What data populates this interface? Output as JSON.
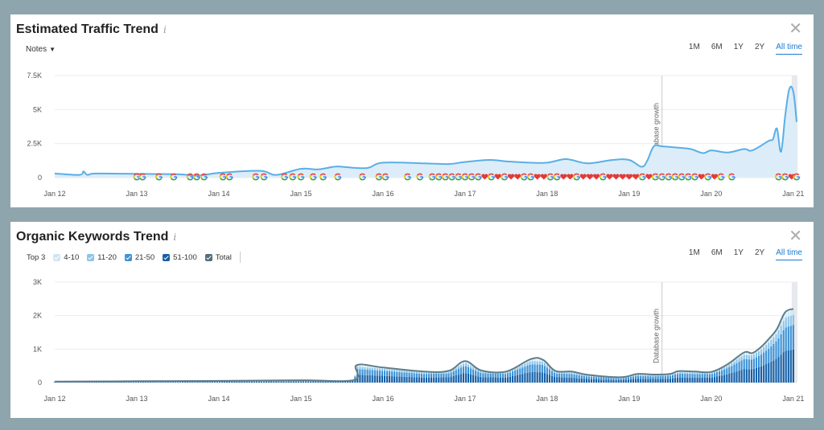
{
  "traffic_panel": {
    "title": "Estimated Traffic Trend",
    "info_glyph": "i",
    "notes_label": "Notes",
    "close_glyph": "✕",
    "range_tabs": [
      "1M",
      "6M",
      "1Y",
      "2Y",
      "All time"
    ],
    "active_tab": "All time",
    "marker_label": "Database growth"
  },
  "keywords_panel": {
    "title": "Organic Keywords Trend",
    "info_glyph": "i",
    "close_glyph": "✕",
    "range_tabs": [
      "1M",
      "6M",
      "1Y",
      "2Y",
      "All time"
    ],
    "active_tab": "All time",
    "marker_label": "Database growth",
    "legend": [
      {
        "label": "Top 3",
        "color": "#0b4f8a",
        "checked": false
      },
      {
        "label": "4-10",
        "color": "#cfe6f6",
        "checked": true
      },
      {
        "label": "11-20",
        "color": "#8cc4ea",
        "checked": true
      },
      {
        "label": "21-50",
        "color": "#3d92d6",
        "checked": true
      },
      {
        "label": "51-100",
        "color": "#1560a8",
        "checked": true
      },
      {
        "label": "Total",
        "color": "#546e7a",
        "checked": true
      }
    ]
  },
  "colors": {
    "traffic_line": "#5aaee6",
    "traffic_area": "#dcedf9",
    "grid": "#ececec",
    "marker_line": "#c9c9c9",
    "google_blue": "#4285f4",
    "google_red": "#ea4335",
    "google_yellow": "#fbbc05",
    "google_green": "#34a853",
    "heart_red": "#e53935",
    "total_line": "#5f7d88",
    "accent": "#1b7bd1"
  },
  "chart_data": [
    {
      "type": "area",
      "title": "Estimated Traffic Trend",
      "x_ticks": [
        "Jan 12",
        "Jan 13",
        "Jan 14",
        "Jan 15",
        "Jan 16",
        "Jan 17",
        "Jan 18",
        "Jan 19",
        "Jan 20",
        "Jan 21"
      ],
      "y_ticks": [
        "0",
        "2.5K",
        "5K",
        "7.5K"
      ],
      "ylim": [
        0,
        7500
      ],
      "xlim": [
        2012.0,
        2021.05
      ],
      "x": [
        2012.0,
        2012.3,
        2012.35,
        2012.4,
        2012.5,
        2013.0,
        2013.5,
        2013.75,
        2014.0,
        2014.5,
        2014.7,
        2015.0,
        2015.2,
        2015.4,
        2015.5,
        2015.8,
        2016.0,
        2016.5,
        2016.8,
        2017.0,
        2017.3,
        2017.5,
        2017.8,
        2018.0,
        2018.2,
        2018.3,
        2018.5,
        2018.8,
        2019.0,
        2019.15,
        2019.22,
        2019.3,
        2019.4,
        2019.6,
        2019.75,
        2019.9,
        2020.0,
        2020.2,
        2020.4,
        2020.5,
        2020.7,
        2020.75,
        2020.8,
        2020.85,
        2020.9,
        2020.95,
        2021.0,
        2021.04
      ],
      "y": [
        300,
        200,
        450,
        200,
        300,
        280,
        250,
        150,
        350,
        500,
        200,
        650,
        600,
        800,
        800,
        700,
        1100,
        1050,
        1000,
        1150,
        1300,
        1200,
        1100,
        1100,
        1350,
        1300,
        1050,
        1300,
        1300,
        800,
        1250,
        2300,
        2300,
        2200,
        2100,
        1800,
        2000,
        1850,
        2100,
        2000,
        2700,
        2800,
        3600,
        1900,
        4500,
        6500,
        6300,
        4100
      ],
      "annotations": [
        {
          "x": 2019.4,
          "label": "Database growth"
        }
      ]
    },
    {
      "type": "bar",
      "title": "Organic Keywords Trend",
      "x_ticks": [
        "Jan 12",
        "Jan 13",
        "Jan 14",
        "Jan 15",
        "Jan 16",
        "Jan 17",
        "Jan 18",
        "Jan 19",
        "Jan 20",
        "Jan 21"
      ],
      "y_ticks": [
        "0",
        "1K",
        "2K",
        "3K"
      ],
      "ylim": [
        0,
        3000
      ],
      "xlim": [
        2012.0,
        2021.05
      ],
      "total_x": [
        2012.0,
        2013.0,
        2014.0,
        2015.0,
        2015.65,
        2015.68,
        2016.0,
        2016.5,
        2016.8,
        2017.0,
        2017.2,
        2017.5,
        2017.8,
        2017.95,
        2018.1,
        2018.3,
        2018.5,
        2018.9,
        2019.1,
        2019.3,
        2019.5,
        2019.6,
        2019.8,
        2020.0,
        2020.2,
        2020.4,
        2020.5,
        2020.6,
        2020.7,
        2020.8,
        2020.9,
        2021.0
      ],
      "total_y": [
        30,
        40,
        50,
        70,
        80,
        520,
        450,
        330,
        350,
        640,
        360,
        330,
        700,
        680,
        350,
        330,
        230,
        160,
        260,
        240,
        260,
        340,
        330,
        320,
        550,
        900,
        880,
        1050,
        1300,
        1600,
        2100,
        2200
      ],
      "series_bands": [
        {
          "label": "51-100",
          "share": 0.45
        },
        {
          "label": "21-50",
          "share": 0.33
        },
        {
          "label": "11-20",
          "share": 0.14
        },
        {
          "label": "4-10",
          "share": 0.08
        }
      ],
      "annotations": [
        {
          "x": 2019.4,
          "label": "Database growth"
        }
      ]
    }
  ],
  "notes_markers": [
    {
      "x": 2013.0,
      "icon": "google"
    },
    {
      "x": 2013.07,
      "icon": "google"
    },
    {
      "x": 2013.27,
      "icon": "google"
    },
    {
      "x": 2013.45,
      "icon": "google"
    },
    {
      "x": 2013.65,
      "icon": "google"
    },
    {
      "x": 2013.73,
      "icon": "google"
    },
    {
      "x": 2013.82,
      "icon": "google"
    },
    {
      "x": 2014.05,
      "icon": "google"
    },
    {
      "x": 2014.13,
      "icon": "google"
    },
    {
      "x": 2014.45,
      "icon": "google"
    },
    {
      "x": 2014.55,
      "icon": "google"
    },
    {
      "x": 2014.8,
      "icon": "google"
    },
    {
      "x": 2014.9,
      "icon": "google"
    },
    {
      "x": 2015.0,
      "icon": "google"
    },
    {
      "x": 2015.15,
      "icon": "google"
    },
    {
      "x": 2015.27,
      "icon": "google"
    },
    {
      "x": 2015.45,
      "icon": "google"
    },
    {
      "x": 2015.75,
      "icon": "google"
    },
    {
      "x": 2015.95,
      "icon": "google"
    },
    {
      "x": 2016.03,
      "icon": "google"
    },
    {
      "x": 2016.3,
      "icon": "google"
    },
    {
      "x": 2016.45,
      "icon": "google"
    },
    {
      "x": 2016.6,
      "icon": "google"
    },
    {
      "x": 2016.68,
      "icon": "google"
    },
    {
      "x": 2016.76,
      "icon": "google"
    },
    {
      "x": 2016.84,
      "icon": "google"
    },
    {
      "x": 2016.92,
      "icon": "google"
    },
    {
      "x": 2017.0,
      "icon": "google"
    },
    {
      "x": 2017.08,
      "icon": "google"
    },
    {
      "x": 2017.16,
      "icon": "google"
    },
    {
      "x": 2017.24,
      "icon": "heart"
    },
    {
      "x": 2017.32,
      "icon": "google"
    },
    {
      "x": 2017.4,
      "icon": "heart"
    },
    {
      "x": 2017.48,
      "icon": "google"
    },
    {
      "x": 2017.56,
      "icon": "heart"
    },
    {
      "x": 2017.64,
      "icon": "heart"
    },
    {
      "x": 2017.72,
      "icon": "google"
    },
    {
      "x": 2017.8,
      "icon": "google"
    },
    {
      "x": 2017.88,
      "icon": "heart"
    },
    {
      "x": 2017.96,
      "icon": "heart"
    },
    {
      "x": 2018.04,
      "icon": "google"
    },
    {
      "x": 2018.12,
      "icon": "google"
    },
    {
      "x": 2018.2,
      "icon": "heart"
    },
    {
      "x": 2018.28,
      "icon": "heart"
    },
    {
      "x": 2018.36,
      "icon": "google"
    },
    {
      "x": 2018.44,
      "icon": "heart"
    },
    {
      "x": 2018.52,
      "icon": "heart"
    },
    {
      "x": 2018.6,
      "icon": "heart"
    },
    {
      "x": 2018.68,
      "icon": "google"
    },
    {
      "x": 2018.76,
      "icon": "heart"
    },
    {
      "x": 2018.84,
      "icon": "heart"
    },
    {
      "x": 2018.92,
      "icon": "heart"
    },
    {
      "x": 2019.0,
      "icon": "heart"
    },
    {
      "x": 2019.08,
      "icon": "heart"
    },
    {
      "x": 2019.16,
      "icon": "google"
    },
    {
      "x": 2019.24,
      "icon": "heart"
    },
    {
      "x": 2019.32,
      "icon": "google"
    },
    {
      "x": 2019.4,
      "icon": "google"
    },
    {
      "x": 2019.48,
      "icon": "google"
    },
    {
      "x": 2019.56,
      "icon": "google"
    },
    {
      "x": 2019.64,
      "icon": "google"
    },
    {
      "x": 2019.72,
      "icon": "google"
    },
    {
      "x": 2019.8,
      "icon": "google"
    },
    {
      "x": 2019.88,
      "icon": "heart"
    },
    {
      "x": 2019.96,
      "icon": "google"
    },
    {
      "x": 2020.04,
      "icon": "heart"
    },
    {
      "x": 2020.12,
      "icon": "google"
    },
    {
      "x": 2020.25,
      "icon": "google"
    },
    {
      "x": 2020.82,
      "icon": "google"
    },
    {
      "x": 2020.9,
      "icon": "google"
    },
    {
      "x": 2020.98,
      "icon": "heart"
    },
    {
      "x": 2021.04,
      "icon": "google"
    }
  ]
}
